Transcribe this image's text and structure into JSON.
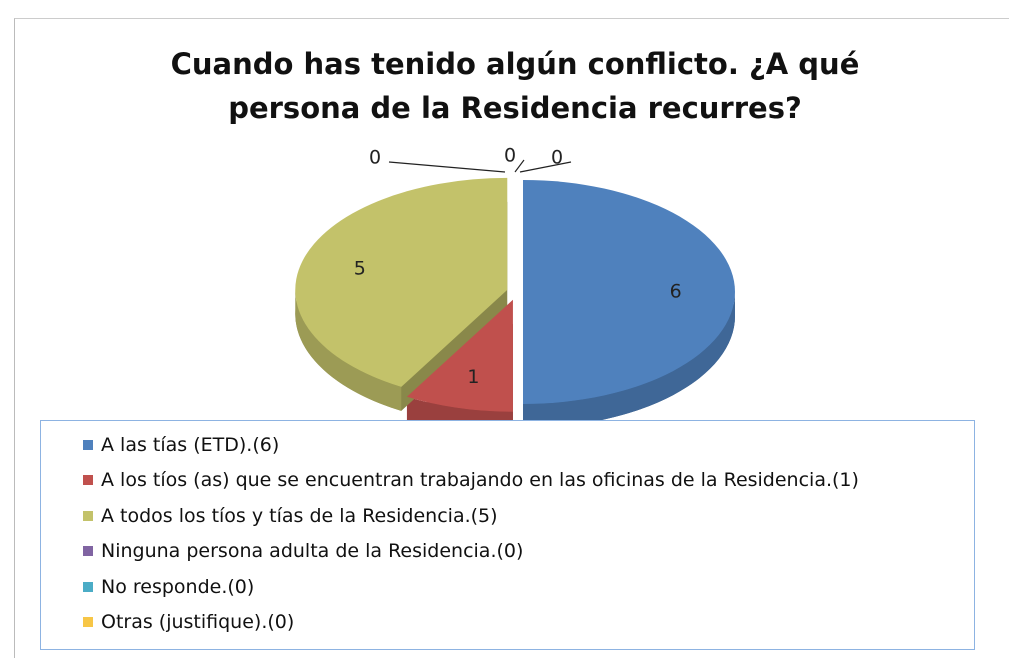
{
  "chart_data": {
    "type": "pie",
    "title": "Cuando has tenido algún conflicto. ¿A qué persona de la Residencia recurres?",
    "categories": [
      "A  las tías (ETD).(6)",
      "A los tíos (as) que se encuentran trabajando en las oficinas de la Residencia.(1)",
      "A todos los tíos y tías de la Residencia.(5)",
      "Ninguna persona adulta de la Residencia.(0)",
      "No responde.(0)",
      "Otras  (justifique).(0)"
    ],
    "values": [
      6,
      1,
      5,
      0,
      0,
      0
    ],
    "colors": [
      "#4f81bd",
      "#c0504d",
      "#c3c26a",
      "#8064a2",
      "#4bacc6",
      "#f7c646"
    ],
    "legend": "bottom"
  }
}
